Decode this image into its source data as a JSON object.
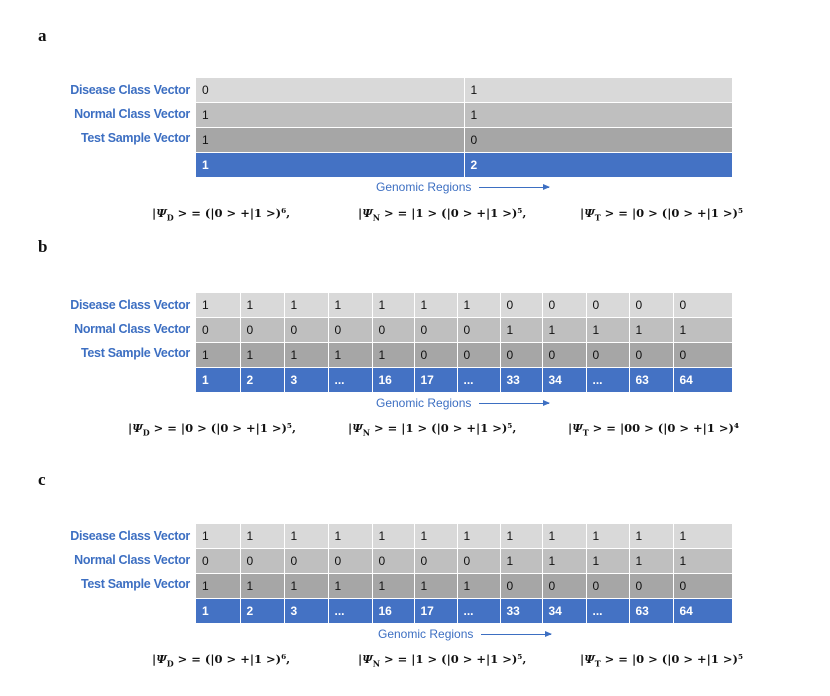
{
  "row_labels": [
    "Disease Class Vector",
    "Normal Class Vector",
    "Test Sample Vector"
  ],
  "genomic_regions_label": "Genomic Regions",
  "panels": [
    {
      "label": "a",
      "rows": [
        [
          "0",
          "1"
        ],
        [
          "1",
          "1"
        ],
        [
          "1",
          "0"
        ],
        [
          "1",
          "2"
        ]
      ],
      "equations": [
        "|Ψ_D > = (|0 > +|1 >)⁶,",
        "|Ψ_N > = |1 > (|0 > +|1 >)⁵,",
        "|Ψ_T > = |0 > (|0 > +|1 >)⁵"
      ]
    },
    {
      "label": "b",
      "rows": [
        [
          "1",
          "1",
          "1",
          "1",
          "1",
          "1",
          "1",
          "0",
          "0",
          "0",
          "0",
          "0"
        ],
        [
          "0",
          "0",
          "0",
          "0",
          "0",
          "0",
          "0",
          "1",
          "1",
          "1",
          "1",
          "1"
        ],
        [
          "1",
          "1",
          "1",
          "1",
          "1",
          "0",
          "0",
          "0",
          "0",
          "0",
          "0",
          "0"
        ],
        [
          "1",
          "2",
          "3",
          "...",
          "16",
          "17",
          "...",
          "33",
          "34",
          "...",
          "63",
          "64"
        ]
      ],
      "equations": [
        "|Ψ_D > = |0 > (|0 > +|1 >)⁵,",
        "|Ψ_N > = |1 > (|0 > +|1 >)⁵,",
        "|Ψ_T > = |00 > (|0 > +|1 >)⁴"
      ]
    },
    {
      "label": "c",
      "rows": [
        [
          "1",
          "1",
          "1",
          "1",
          "1",
          "1",
          "1",
          "1",
          "1",
          "1",
          "1",
          "1"
        ],
        [
          "0",
          "0",
          "0",
          "0",
          "0",
          "0",
          "0",
          "1",
          "1",
          "1",
          "1",
          "1"
        ],
        [
          "1",
          "1",
          "1",
          "1",
          "1",
          "1",
          "1",
          "0",
          "0",
          "0",
          "0",
          "0"
        ],
        [
          "1",
          "2",
          "3",
          "...",
          "16",
          "17",
          "...",
          "33",
          "34",
          "...",
          "63",
          "64"
        ]
      ],
      "equations": [
        "|Ψ_D > = (|0 > +|1 >)⁶,",
        "|Ψ_N > = |1 > (|0 > +|1 >)⁵,",
        "|Ψ_T > = |0 > (|0 > +|1 >)⁵"
      ]
    }
  ]
}
